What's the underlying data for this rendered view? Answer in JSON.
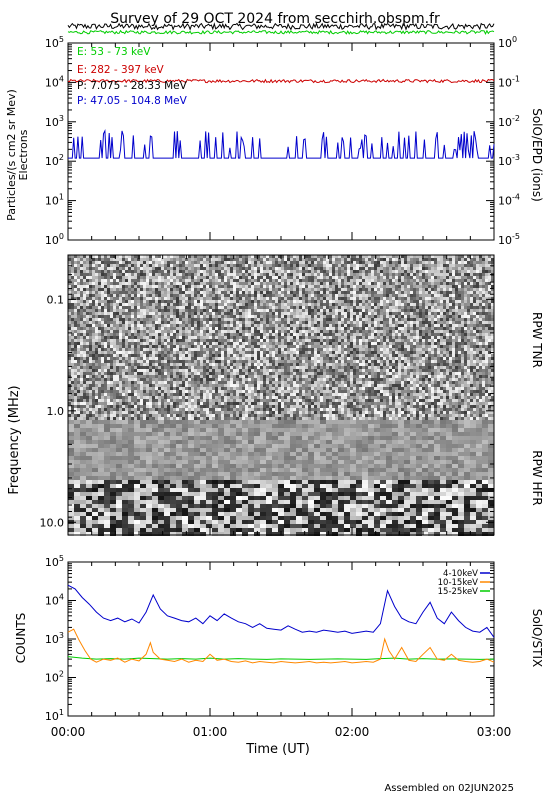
{
  "title": "Survey of 29 OCT 2024 from secchirh.obspm.fr",
  "footer": "Assembled on 02JUN2025",
  "xlabel": "Time (UT)",
  "xticks": [
    "00:00",
    "01:00",
    "02:00",
    "03:00"
  ],
  "chart_data": [
    {
      "type": "line",
      "panel": "epd",
      "ylabel_left": "Particles/(s cm2 sr Mev)",
      "ylabel_left2": "Electrons",
      "ylabel_right": "SolO/EPD (ions)",
      "y_scale": "log",
      "ylim": [
        1,
        100000
      ],
      "yticks_left": [
        "10^0",
        "10^1",
        "10^2",
        "10^3",
        "10^4",
        "10^5"
      ],
      "ylim_right": [
        1e-05,
        1
      ],
      "yticks_right": [
        "10^-5",
        "10^-4",
        "10^-3",
        "10^-2",
        "10^-1",
        "10^0"
      ],
      "x_range_hours": [
        0,
        3
      ],
      "series": [
        {
          "name": "E: 53 - 73 keV",
          "color": "#00cc00",
          "level": 190000
        },
        {
          "name": "E: 282 - 397 keV",
          "color": "#cc0000",
          "level": 11000
        },
        {
          "name": "P: 7.075 - 28.33 MeV",
          "color": "#000000",
          "level": 260000
        },
        {
          "name": "P: 47.05 - 104.8 MeV",
          "color": "#0000cc",
          "level": 120
        }
      ]
    },
    {
      "type": "heatmap",
      "panel": "rpw",
      "ylabel": "Frequency (MHz)",
      "y_scale": "log",
      "ylim": [
        13,
        0.04
      ],
      "yticks": [
        "0.1",
        "1.0",
        "10.0"
      ],
      "labels_right": [
        "RPW TNR",
        "RPW HFR"
      ],
      "x_range_hours": [
        0,
        3
      ]
    },
    {
      "type": "line",
      "panel": "stix",
      "ylabel": "COUNTS",
      "ylabel_right": "SolO/STIX",
      "y_scale": "log",
      "ylim": [
        10,
        100000
      ],
      "yticks": [
        "10^1",
        "10^2",
        "10^3",
        "10^4",
        "10^5"
      ],
      "x_range_hours": [
        0,
        3
      ],
      "series": [
        {
          "name": "4-10keV",
          "color": "#0000cc",
          "points": [
            [
              0.0,
              25000
            ],
            [
              0.05,
              20000
            ],
            [
              0.1,
              12000
            ],
            [
              0.15,
              8000
            ],
            [
              0.2,
              5000
            ],
            [
              0.25,
              3500
            ],
            [
              0.3,
              3000
            ],
            [
              0.35,
              3500
            ],
            [
              0.4,
              2800
            ],
            [
              0.45,
              3300
            ],
            [
              0.5,
              2600
            ],
            [
              0.55,
              5000
            ],
            [
              0.6,
              14000
            ],
            [
              0.65,
              6000
            ],
            [
              0.7,
              4000
            ],
            [
              0.75,
              3500
            ],
            [
              0.8,
              3000
            ],
            [
              0.85,
              2800
            ],
            [
              0.9,
              3500
            ],
            [
              0.95,
              2500
            ],
            [
              1.0,
              4000
            ],
            [
              1.05,
              3000
            ],
            [
              1.1,
              4500
            ],
            [
              1.15,
              3500
            ],
            [
              1.2,
              2800
            ],
            [
              1.25,
              2500
            ],
            [
              1.3,
              2000
            ],
            [
              1.35,
              2500
            ],
            [
              1.4,
              1900
            ],
            [
              1.45,
              1800
            ],
            [
              1.5,
              1700
            ],
            [
              1.55,
              2200
            ],
            [
              1.6,
              1800
            ],
            [
              1.65,
              1500
            ],
            [
              1.7,
              1600
            ],
            [
              1.75,
              1500
            ],
            [
              1.8,
              1700
            ],
            [
              1.85,
              1600
            ],
            [
              1.9,
              1500
            ],
            [
              1.95,
              1600
            ],
            [
              2.0,
              1400
            ],
            [
              2.05,
              1500
            ],
            [
              2.1,
              1600
            ],
            [
              2.15,
              1500
            ],
            [
              2.2,
              2500
            ],
            [
              2.25,
              18000
            ],
            [
              2.3,
              7000
            ],
            [
              2.35,
              3500
            ],
            [
              2.4,
              2800
            ],
            [
              2.45,
              2500
            ],
            [
              2.5,
              5000
            ],
            [
              2.55,
              9000
            ],
            [
              2.6,
              3500
            ],
            [
              2.65,
              2500
            ],
            [
              2.7,
              5000
            ],
            [
              2.75,
              3000
            ],
            [
              2.8,
              2000
            ],
            [
              2.85,
              1600
            ],
            [
              2.9,
              1500
            ],
            [
              2.95,
              2000
            ],
            [
              3.0,
              1100
            ]
          ]
        },
        {
          "name": "10-15keV",
          "color": "#ff8800",
          "points": [
            [
              0.0,
              1500
            ],
            [
              0.04,
              1800
            ],
            [
              0.08,
              900
            ],
            [
              0.12,
              500
            ],
            [
              0.16,
              300
            ],
            [
              0.2,
              250
            ],
            [
              0.25,
              300
            ],
            [
              0.3,
              280
            ],
            [
              0.35,
              320
            ],
            [
              0.4,
              250
            ],
            [
              0.45,
              300
            ],
            [
              0.5,
              270
            ],
            [
              0.55,
              400
            ],
            [
              0.58,
              800
            ],
            [
              0.6,
              450
            ],
            [
              0.65,
              300
            ],
            [
              0.7,
              280
            ],
            [
              0.75,
              260
            ],
            [
              0.8,
              300
            ],
            [
              0.85,
              250
            ],
            [
              0.9,
              280
            ],
            [
              0.95,
              260
            ],
            [
              1.0,
              400
            ],
            [
              1.05,
              280
            ],
            [
              1.1,
              300
            ],
            [
              1.15,
              260
            ],
            [
              1.2,
              250
            ],
            [
              1.25,
              270
            ],
            [
              1.3,
              240
            ],
            [
              1.35,
              260
            ],
            [
              1.4,
              250
            ],
            [
              1.45,
              240
            ],
            [
              1.5,
              260
            ],
            [
              1.55,
              250
            ],
            [
              1.6,
              240
            ],
            [
              1.65,
              250
            ],
            [
              1.7,
              260
            ],
            [
              1.75,
              240
            ],
            [
              1.8,
              250
            ],
            [
              1.85,
              240
            ],
            [
              1.9,
              250
            ],
            [
              1.95,
              260
            ],
            [
              2.0,
              240
            ],
            [
              2.05,
              250
            ],
            [
              2.1,
              260
            ],
            [
              2.15,
              250
            ],
            [
              2.2,
              300
            ],
            [
              2.23,
              1000
            ],
            [
              2.26,
              500
            ],
            [
              2.3,
              300
            ],
            [
              2.35,
              600
            ],
            [
              2.4,
              280
            ],
            [
              2.45,
              260
            ],
            [
              2.5,
              400
            ],
            [
              2.55,
              600
            ],
            [
              2.6,
              300
            ],
            [
              2.65,
              280
            ],
            [
              2.7,
              400
            ],
            [
              2.75,
              280
            ],
            [
              2.8,
              260
            ],
            [
              2.85,
              250
            ],
            [
              2.9,
              260
            ],
            [
              2.95,
              300
            ],
            [
              3.0,
              250
            ]
          ]
        },
        {
          "name": "15-25keV",
          "color": "#00cc00",
          "points": [
            [
              0.0,
              350
            ],
            [
              0.1,
              320
            ],
            [
              0.2,
              300
            ],
            [
              0.3,
              310
            ],
            [
              0.4,
              300
            ],
            [
              0.5,
              320
            ],
            [
              0.6,
              310
            ],
            [
              0.7,
              300
            ],
            [
              0.8,
              310
            ],
            [
              0.9,
              300
            ],
            [
              1.0,
              320
            ],
            [
              1.1,
              300
            ],
            [
              1.2,
              310
            ],
            [
              1.3,
              300
            ],
            [
              1.4,
              295
            ],
            [
              1.5,
              305
            ],
            [
              1.6,
              300
            ],
            [
              1.7,
              295
            ],
            [
              1.8,
              300
            ],
            [
              1.9,
              305
            ],
            [
              2.0,
              300
            ],
            [
              2.1,
              295
            ],
            [
              2.2,
              310
            ],
            [
              2.3,
              320
            ],
            [
              2.4,
              300
            ],
            [
              2.5,
              310
            ],
            [
              2.6,
              300
            ],
            [
              2.7,
              305
            ],
            [
              2.8,
              300
            ],
            [
              2.9,
              295
            ],
            [
              3.0,
              300
            ]
          ]
        }
      ]
    }
  ]
}
